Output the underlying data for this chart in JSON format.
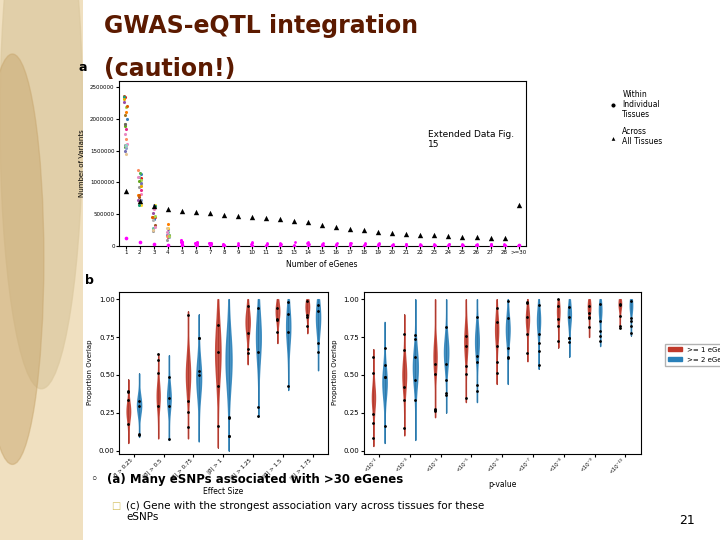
{
  "title_line1": "GWAS-eQTL integration",
  "title_line2": "(caution!)",
  "extended_data_label": "Extended Data Fig.\n15",
  "slide_number": "21",
  "bullet_main": "(a) Many eSNPs associated with >30 eGenes",
  "bullet_sub": "(c) Gene with the strongest association vary across tissues for these\neSNPs",
  "legend_red": ">= 1 eGene(s)",
  "legend_blue": ">= 2 eGene(s)",
  "bg_color": "#f0e0c0",
  "slide_bg": "#ffffff",
  "title_color": "#5c1a00",
  "panel_a_xlabel": "Number of eGenes",
  "panel_a_ylabel": "Number of Variants",
  "panel_b_left_xlabel": "Effect Size",
  "panel_b_left_ylabel": "Proportion Overlap",
  "panel_b_right_xlabel": "p-value",
  "panel_b_right_ylabel": "Proportion Overlap",
  "effect_size_labels": [
    "β > 0.25",
    "|β| > 0.5",
    "|β| > 0.75",
    "|β| > 1",
    "|β| > 1.25",
    "|β| > 1.5",
    "|β| > 1.75"
  ],
  "pvalue_labels": [
    "<10⁻²",
    "<10⁻³",
    "<10⁻⁴",
    "<10⁻⁵",
    "<10⁻⁶",
    "<10⁻⁷",
    "<10⁻⁸",
    "<10⁻⁹",
    "<10⁻¹⁰"
  ],
  "across_values": [
    870000,
    710000,
    620000,
    580000,
    555000,
    535000,
    510000,
    490000,
    470000,
    455000,
    440000,
    428000,
    390000,
    370000,
    330000,
    300000,
    270000,
    245000,
    220000,
    200000,
    185000,
    175000,
    165000,
    155000,
    145000,
    135000,
    125000,
    115000,
    650000
  ],
  "colors_tissue": [
    "#e41a1c",
    "#377eb8",
    "#4daf4a",
    "#984ea3",
    "#ff7f00",
    "#a65628",
    "#f781bf",
    "#999999",
    "#66c2a5",
    "#fc8d62",
    "#8da0cb",
    "#e78ac3",
    "#a6d854",
    "#ffd92f",
    "#e5c494",
    "#b3b3b3",
    "#1b9e77",
    "#d95f02",
    "#7570b3",
    "#e7298a",
    "#66a61e",
    "#e6ab02",
    "#a6761d",
    "#666666",
    "#8dd3c7",
    "#ffffb3",
    "#bebada",
    "#fb8072",
    "#80b1d3"
  ]
}
